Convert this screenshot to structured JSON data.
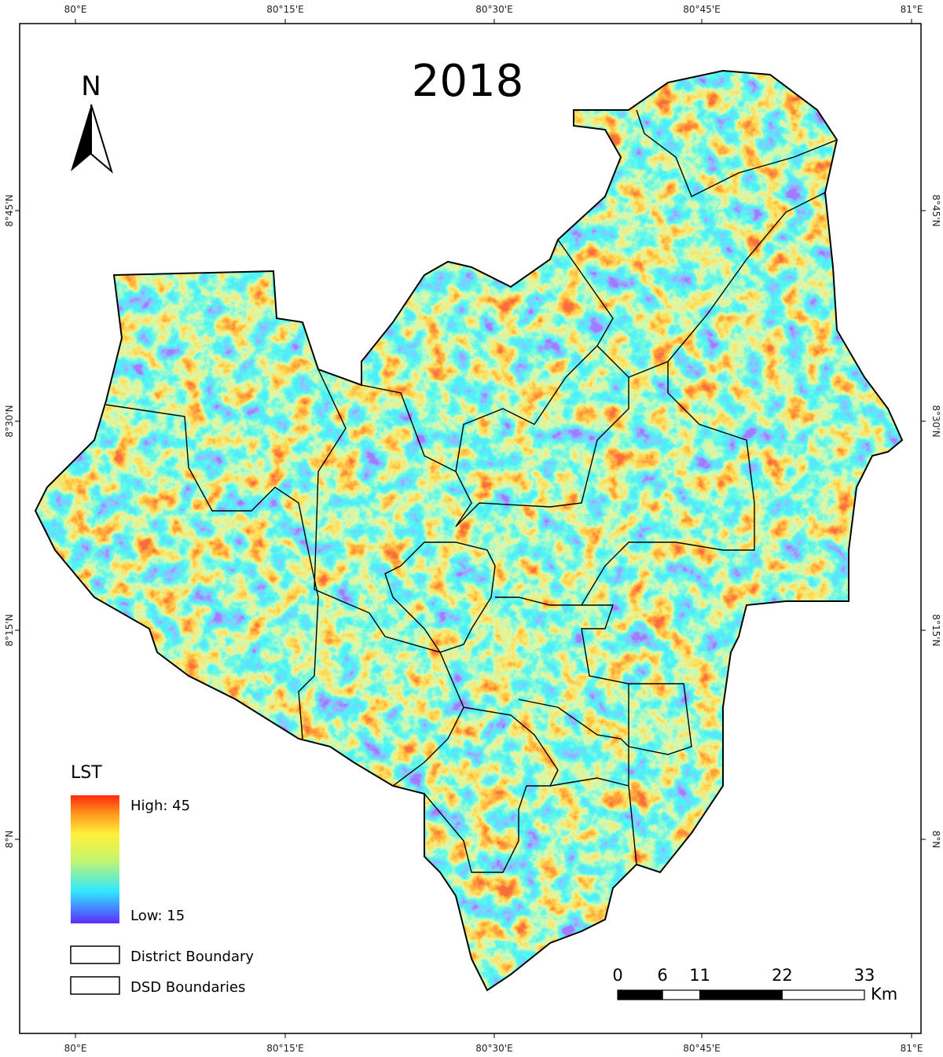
{
  "title": "2018",
  "north_arrow": "N",
  "longitude_labels": [
    "80°E",
    "80°15'E",
    "80°30'E",
    "80°45'E",
    "81°E"
  ],
  "latitude_labels": [
    "8°45'N",
    "8°30'N",
    "8°15'N",
    "8°N"
  ],
  "legend": {
    "title": "LST",
    "high": "High: 45",
    "low": "Low: 15",
    "items": [
      "District Boundary",
      "DSD Boundaries"
    ]
  },
  "scale_bar": {
    "ticks": [
      0,
      6,
      11,
      22,
      33
    ],
    "unit": "Km"
  }
}
